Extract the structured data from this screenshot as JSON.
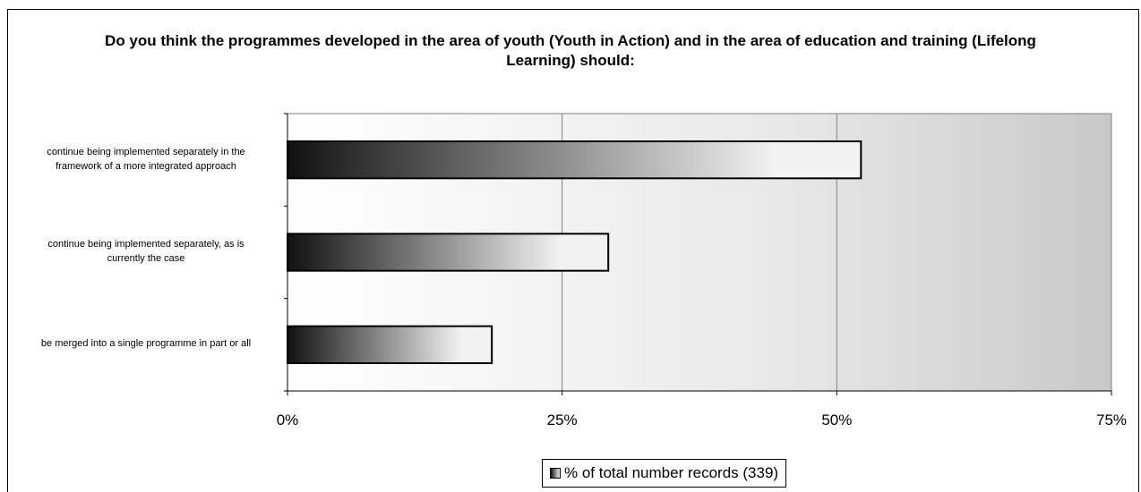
{
  "chart_data": {
    "type": "bar",
    "orientation": "horizontal",
    "title": "Do you think the programmes developed in the area of youth (Youth in Action) and in the area of education and training (Lifelong Learning) should:",
    "categories": [
      "continue being implemented separately in the framework of a more integrated approach",
      "continue being implemented separately, as is currently the case",
      "be merged into a single programme in part or all"
    ],
    "category_lines": [
      [
        "continue being implemented separately in the",
        "framework of a more integrated approach"
      ],
      [
        "continue being implemented separately, as is",
        "currently the case"
      ],
      [
        "be merged into a single programme in part or all"
      ]
    ],
    "series": [
      {
        "name": "% of total number records (339)",
        "values": [
          52.2,
          29.2,
          18.6
        ]
      }
    ],
    "xlim": [
      0,
      75
    ],
    "xticks": [
      0,
      25,
      50,
      75
    ],
    "xtick_labels": [
      "0%",
      "25%",
      "50%",
      "75%"
    ],
    "grid": true,
    "legend_position": "bottom",
    "colors": {
      "bar_dark": "#111111",
      "bar_light": "#f2f2f2",
      "plot_light": "#ffffff",
      "plot_dark": "#c8c8c8",
      "grid": "#808080"
    }
  }
}
